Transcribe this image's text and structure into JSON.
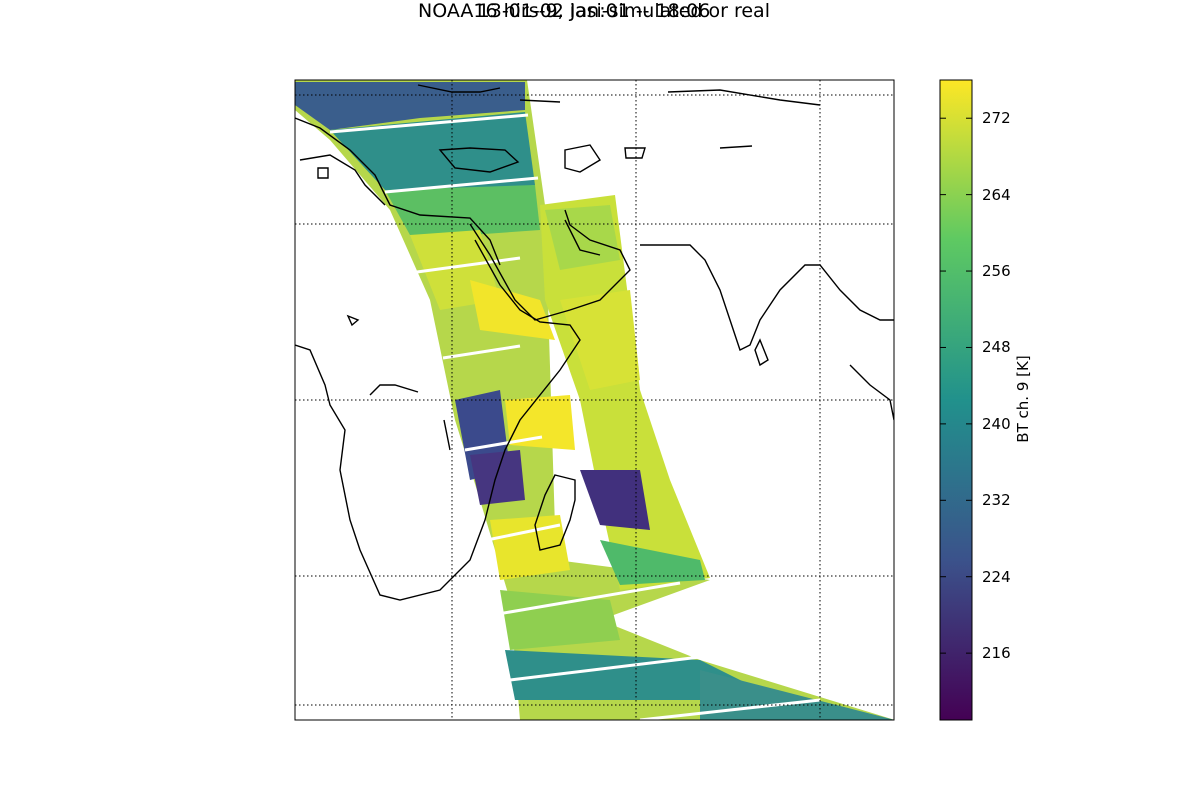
{
  "title_line1": "NOAA16 hirs-9, iasi-simulated or real",
  "title_line2": "13-01-02 Jan:01 -- 18:06",
  "colorbar": {
    "label": "BT ch. 9 [K]",
    "ticks": [
      "272",
      "264",
      "256",
      "248",
      "240",
      "232",
      "224",
      "216"
    ],
    "range": [
      209,
      276
    ],
    "colormap": "viridis",
    "colors": [
      "#440154",
      "#3b528b",
      "#21918c",
      "#5ec962",
      "#fde725"
    ]
  },
  "chart_data": {
    "type": "heatmap",
    "title": "NOAA16 hirs-9, iasi-simulated or real\n13-01-02 Jan:01 -- 18:06",
    "colorbar_label": "BT ch. 9 [K]",
    "colorbar_ticks": [
      272,
      264,
      256,
      248,
      240,
      232,
      224,
      216
    ],
    "value_range": [
      209,
      276
    ],
    "grid": true,
    "colormap": "viridis"
  }
}
